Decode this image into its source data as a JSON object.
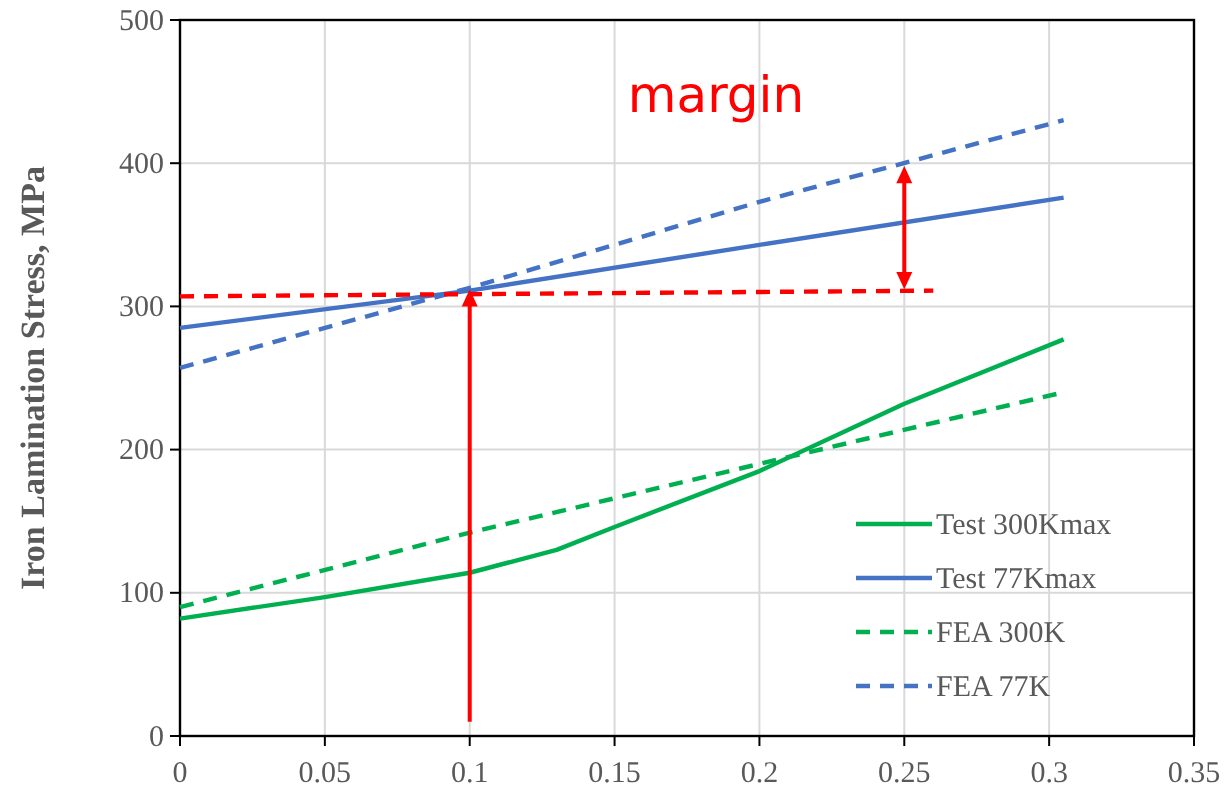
{
  "chart_data": {
    "type": "line",
    "ylabel": "Iron Lamination Stress, MPa",
    "xlim": [
      0,
      0.35
    ],
    "xticks": [
      0,
      0.05,
      0.1,
      0.15,
      0.2,
      0.25,
      0.3,
      0.35
    ],
    "ylim": [
      0,
      500
    ],
    "yticks": [
      0,
      100,
      200,
      300,
      400,
      500
    ],
    "grid": true,
    "legend": "bottom right",
    "annotations": [
      "margin"
    ],
    "series": [
      {
        "name": "Test 300Kmax",
        "color": "#00b050",
        "line_style": "solid",
        "x": [
          0,
          0.05,
          0.1,
          0.13,
          0.15,
          0.2,
          0.25,
          0.305
        ],
        "values": [
          82,
          97,
          114,
          130,
          146,
          185,
          232,
          277
        ]
      },
      {
        "name": "Test 77Kmax",
        "color": "#4472c4",
        "line_style": "solid",
        "x": [
          0,
          0.1,
          0.2,
          0.305
        ],
        "values": [
          285,
          311,
          343,
          376
        ]
      },
      {
        "name": "FEA 300K",
        "color": "#00b050",
        "line_style": "dashed",
        "x": [
          0,
          0.1,
          0.2,
          0.305
        ],
        "values": [
          90,
          142,
          190,
          240
        ]
      },
      {
        "name": "FEA 77K",
        "color": "#4472c4",
        "line_style": "dashed",
        "x": [
          0,
          0.1,
          0.2,
          0.305
        ],
        "values": [
          257,
          313,
          373,
          430
        ]
      },
      {
        "color": "#ff0000",
        "line_style": "dashed",
        "x": [
          0,
          0.26
        ],
        "values": [
          307,
          311
        ]
      }
    ]
  }
}
